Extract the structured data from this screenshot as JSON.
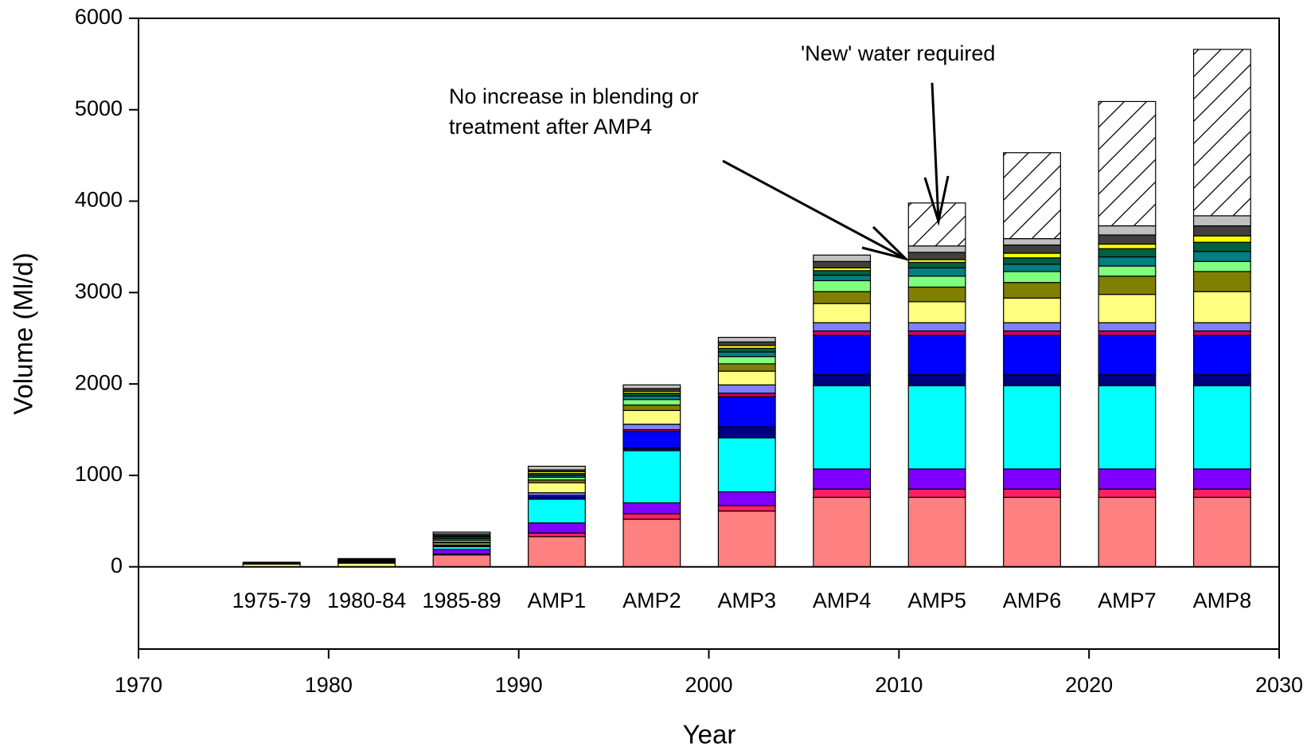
{
  "chart_data": {
    "type": "stacked_bar",
    "xlabel": "Year",
    "ylabel": "Volume (Ml/d)",
    "x": [
      1977,
      1982,
      1987,
      1992,
      1997,
      2002,
      2007,
      2012,
      2017,
      2022,
      2027
    ],
    "categories": [
      "1975-79",
      "1980-84",
      "1985-89",
      "AMP1",
      "AMP2",
      "AMP3",
      "AMP4",
      "AMP5",
      "AMP6",
      "AMP7",
      "AMP8"
    ],
    "bar_width": 3,
    "xlim": [
      1970,
      2030
    ],
    "xticks": [
      1970,
      1980,
      1990,
      2000,
      2010,
      2020,
      2030
    ],
    "ylim": [
      -900,
      6000
    ],
    "yticks": [
      0,
      1000,
      2000,
      3000,
      4000,
      5000,
      6000
    ],
    "series": [
      {
        "color": "#ff8080",
        "values": [
          0,
          0,
          130,
          330,
          520,
          610,
          760,
          760,
          760,
          760,
          760
        ]
      },
      {
        "color": "#ff2060",
        "values": [
          0,
          0,
          10,
          40,
          60,
          60,
          90,
          90,
          90,
          90,
          90
        ]
      },
      {
        "color": "#8000ff",
        "values": [
          0,
          0,
          50,
          110,
          120,
          150,
          220,
          220,
          220,
          220,
          220
        ]
      },
      {
        "color": "#00ffff",
        "values": [
          0,
          0,
          30,
          260,
          570,
          590,
          910,
          910,
          910,
          910,
          910
        ]
      },
      {
        "color": "#000080",
        "values": [
          0,
          0,
          0,
          20,
          30,
          120,
          120,
          120,
          120,
          120,
          120
        ]
      },
      {
        "color": "#0000ff",
        "values": [
          0,
          0,
          10,
          20,
          180,
          330,
          430,
          430,
          430,
          430,
          430
        ]
      },
      {
        "color": "#cc0066",
        "values": [
          0,
          0,
          0,
          0,
          20,
          40,
          50,
          50,
          50,
          50,
          50
        ]
      },
      {
        "color": "#8080ff",
        "values": [
          0,
          0,
          10,
          30,
          60,
          90,
          90,
          90,
          90,
          90,
          90
        ]
      },
      {
        "color": "#ffff80",
        "values": [
          30,
          40,
          20,
          110,
          150,
          150,
          210,
          230,
          270,
          310,
          340
        ]
      },
      {
        "color": "#808000",
        "values": [
          0,
          10,
          10,
          30,
          60,
          80,
          130,
          160,
          170,
          200,
          220
        ]
      },
      {
        "color": "#80ff80",
        "values": [
          0,
          0,
          20,
          30,
          60,
          80,
          120,
          120,
          120,
          110,
          110
        ]
      },
      {
        "color": "#008080",
        "values": [
          0,
          0,
          20,
          20,
          40,
          50,
          60,
          90,
          80,
          100,
          110
        ]
      },
      {
        "color": "#006040",
        "values": [
          0,
          10,
          20,
          20,
          30,
          40,
          50,
          60,
          70,
          90,
          100
        ]
      },
      {
        "color": "#ffff00",
        "values": [
          0,
          10,
          10,
          20,
          20,
          30,
          30,
          30,
          50,
          50,
          70
        ]
      },
      {
        "color": "#404040",
        "values": [
          10,
          10,
          20,
          20,
          30,
          40,
          70,
          80,
          90,
          100,
          110
        ]
      },
      {
        "color": "#c0c0c0",
        "values": [
          10,
          10,
          20,
          40,
          40,
          50,
          70,
          70,
          70,
          100,
          110
        ]
      },
      {
        "color": "#ffffff",
        "hatch": true,
        "values": [
          0,
          0,
          0,
          0,
          0,
          0,
          0,
          470,
          940,
          1360,
          1820
        ]
      }
    ],
    "annotations": [
      {
        "lines": [
          "No increase in blending or",
          "treatment after AMP4"
        ]
      },
      {
        "lines": [
          "'New' water required"
        ]
      }
    ]
  }
}
